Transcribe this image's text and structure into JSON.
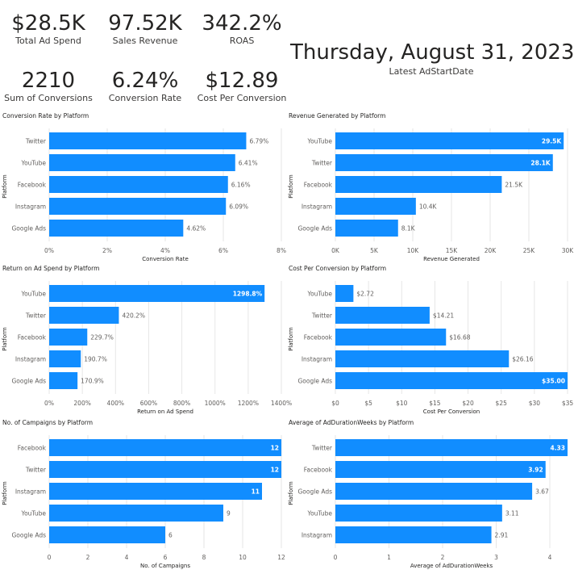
{
  "kpis": [
    {
      "value": "$28.5K",
      "label": "Total Ad Spend"
    },
    {
      "value": "97.52K",
      "label": "Sales Revenue"
    },
    {
      "value": "342.2%",
      "label": "ROAS"
    },
    {
      "value": "2210",
      "label": "Sum of Conversions"
    },
    {
      "value": "6.24%",
      "label": "Conversion Rate"
    },
    {
      "value": "$12.89",
      "label": "Cost Per Conversion"
    }
  ],
  "date_card": {
    "value": "Thursday, August 31, 2023",
    "label": "Latest AdStartDate"
  },
  "colors": {
    "bar": "#118DFF",
    "grid": "#e6e6e6",
    "text": "#605e5c"
  },
  "chart_data": [
    {
      "type": "bar",
      "orientation": "horizontal",
      "title": "Conversion Rate by Platform",
      "xlabel": "Conversion Rate",
      "ylabel": "Platform",
      "categories": [
        "Twitter",
        "YouTube",
        "Facebook",
        "Instagram",
        "Google Ads"
      ],
      "values": [
        6.79,
        6.41,
        6.16,
        6.09,
        4.62
      ],
      "data_labels": [
        "6.79%",
        "6.41%",
        "6.16%",
        "6.09%",
        "4.62%"
      ],
      "xlim": [
        0,
        8
      ],
      "ticks": [
        0,
        2,
        4,
        6,
        8
      ],
      "tick_labels": [
        "0%",
        "2%",
        "4%",
        "6%",
        "8%"
      ]
    },
    {
      "type": "bar",
      "orientation": "horizontal",
      "title": "Revenue Generated by Platform",
      "xlabel": "Revenue Generated",
      "ylabel": "Platform",
      "categories": [
        "YouTube",
        "Twitter",
        "Facebook",
        "Instagram",
        "Google Ads"
      ],
      "values": [
        29.5,
        28.1,
        21.5,
        10.4,
        8.1
      ],
      "data_labels": [
        "29.5K",
        "28.1K",
        "21.5K",
        "10.4K",
        "8.1K"
      ],
      "xlim": [
        0,
        30
      ],
      "ticks": [
        0,
        5,
        10,
        15,
        20,
        25,
        30
      ],
      "tick_labels": [
        "0K",
        "5K",
        "10K",
        "15K",
        "20K",
        "25K",
        "30K"
      ]
    },
    {
      "type": "bar",
      "orientation": "horizontal",
      "title": "Return on Ad Spend by Platform",
      "xlabel": "Return on Ad Spend",
      "ylabel": "Platform",
      "categories": [
        "YouTube",
        "Twitter",
        "Facebook",
        "Instagram",
        "Google Ads"
      ],
      "values": [
        1298.8,
        420.2,
        229.7,
        190.7,
        170.9
      ],
      "data_labels": [
        "1298.8%",
        "420.2%",
        "229.7%",
        "190.7%",
        "170.9%"
      ],
      "xlim": [
        0,
        1400
      ],
      "ticks": [
        0,
        200,
        400,
        600,
        800,
        1000,
        1200,
        1400
      ],
      "tick_labels": [
        "0%",
        "200%",
        "400%",
        "600%",
        "800%",
        "1000%",
        "1200%",
        "1400%"
      ]
    },
    {
      "type": "bar",
      "orientation": "horizontal",
      "title": "Cost Per Conversion by Platform",
      "xlabel": "Cost Per Conversion",
      "ylabel": "Platform",
      "categories": [
        "YouTube",
        "Twitter",
        "Facebook",
        "Instagram",
        "Google Ads"
      ],
      "values": [
        2.72,
        14.21,
        16.68,
        26.16,
        35.0
      ],
      "data_labels": [
        "$2.72",
        "$14.21",
        "$16.68",
        "$26.16",
        "$35.00"
      ],
      "xlim": [
        0,
        35
      ],
      "ticks": [
        0,
        5,
        10,
        15,
        20,
        25,
        30,
        35
      ],
      "tick_labels": [
        "$0",
        "$5",
        "$10",
        "$15",
        "$20",
        "$25",
        "$30",
        "$35"
      ]
    },
    {
      "type": "bar",
      "orientation": "horizontal",
      "title": "No. of Campaigns by Platform",
      "xlabel": "No. of Campaigns",
      "ylabel": "Platform",
      "categories": [
        "Facebook",
        "Twitter",
        "Instagram",
        "YouTube",
        "Google Ads"
      ],
      "values": [
        12,
        12,
        11,
        9,
        6
      ],
      "data_labels": [
        "12",
        "12",
        "11",
        "9",
        "6"
      ],
      "xlim": [
        0,
        12
      ],
      "ticks": [
        0,
        2,
        4,
        6,
        8,
        10,
        12
      ],
      "tick_labels": [
        "0",
        "2",
        "4",
        "6",
        "8",
        "10",
        "12"
      ]
    },
    {
      "type": "bar",
      "orientation": "horizontal",
      "title": "Average of AdDurationWeeks by Platform",
      "xlabel": "Average of AdDurationWeeks",
      "ylabel": "Platform",
      "categories": [
        "Twitter",
        "Facebook",
        "Google Ads",
        "YouTube",
        "Instagram"
      ],
      "values": [
        4.33,
        3.92,
        3.67,
        3.11,
        2.91
      ],
      "data_labels": [
        "4.33",
        "3.92",
        "3.67",
        "3.11",
        "2.91"
      ],
      "xlim": [
        0,
        4.33
      ],
      "ticks": [
        0,
        1,
        2,
        3,
        4
      ],
      "tick_labels": [
        "0",
        "1",
        "2",
        "3",
        "4"
      ]
    }
  ]
}
